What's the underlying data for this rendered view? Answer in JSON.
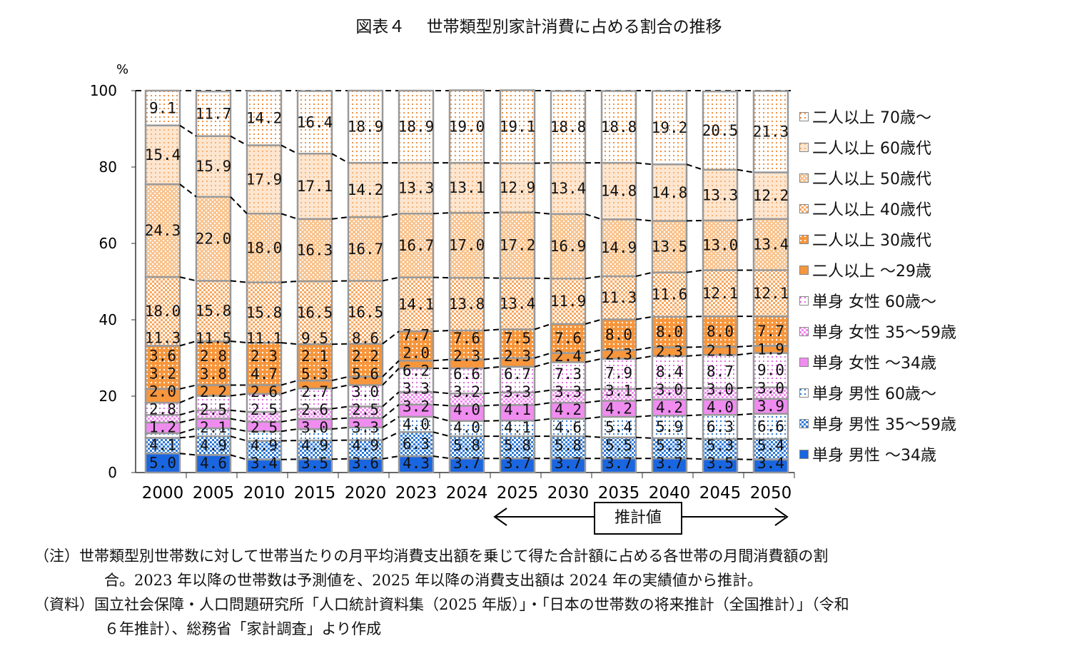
{
  "title": "図表４　 世帯類型別家計消費に占める割合の推移",
  "chart_data": {
    "type": "bar",
    "stacked": true,
    "ylabel": "%",
    "ylim": [
      0,
      100
    ],
    "yticks": [
      0,
      20,
      40,
      60,
      80,
      100
    ],
    "categories": [
      "2000",
      "2005",
      "2010",
      "2015",
      "2020",
      "2023",
      "2024",
      "2025",
      "2030",
      "2035",
      "2040",
      "2045",
      "2050"
    ],
    "series": [
      {
        "name": "単身 男性 ～34歳",
        "color": "#1a66e0",
        "pattern": "solid",
        "values": [
          5.0,
          4.6,
          3.4,
          3.5,
          3.6,
          4.3,
          3.7,
          3.7,
          3.7,
          3.7,
          3.7,
          3.5,
          3.4
        ]
      },
      {
        "name": "単身 男性 35～59歳",
        "color": "#2f7ad8",
        "pattern": "check",
        "values": [
          4.1,
          4.9,
          4.9,
          4.9,
          4.9,
          6.3,
          5.8,
          5.8,
          5.8,
          5.5,
          5.3,
          5.3,
          5.4
        ]
      },
      {
        "name": "単身 男性 60歳～",
        "color": "#2f7ad8",
        "pattern": "dots",
        "values": [
          1.2,
          2.1,
          2.5,
          3.0,
          3.3,
          4.0,
          4.0,
          4.1,
          4.6,
          5.4,
          5.9,
          6.3,
          6.6
        ]
      },
      {
        "name": "単身 女性 ～34歳",
        "color": "#f08cf0",
        "pattern": "solid",
        "values": [
          2.8,
          2.5,
          2.5,
          2.6,
          2.5,
          3.2,
          4.0,
          4.1,
          4.2,
          4.2,
          4.2,
          4.0,
          3.9
        ]
      },
      {
        "name": "単身 女性 35～59歳",
        "color": "#f08cf0",
        "pattern": "check",
        "values": [
          2.0,
          2.2,
          2.6,
          2.7,
          3.0,
          3.3,
          3.2,
          3.3,
          3.3,
          3.1,
          3.0,
          3.0,
          3.0
        ]
      },
      {
        "name": "単身 女性 60歳～",
        "color": "#e070e0",
        "pattern": "dots",
        "values": [
          3.2,
          3.8,
          4.7,
          5.3,
          5.6,
          6.2,
          6.6,
          6.7,
          7.3,
          7.9,
          8.4,
          8.7,
          9.0
        ]
      },
      {
        "name": "二人以上 ～29歳",
        "color": "#f7963c",
        "pattern": "solid",
        "values": [
          3.6,
          2.8,
          2.3,
          2.1,
          2.2,
          2.0,
          2.3,
          2.3,
          2.4,
          2.3,
          2.3,
          2.1,
          1.9
        ]
      },
      {
        "name": "二人以上 30歳代",
        "color": "#f7963c",
        "pattern": "whitedots",
        "values": [
          11.3,
          11.5,
          11.1,
          9.5,
          8.6,
          7.7,
          7.6,
          7.5,
          7.6,
          8.0,
          8.0,
          8.0,
          7.7
        ]
      },
      {
        "name": "二人以上 40歳代",
        "color": "#f7a860",
        "pattern": "check",
        "values": [
          18.0,
          15.8,
          15.8,
          16.5,
          16.5,
          14.1,
          13.8,
          13.4,
          11.9,
          11.3,
          11.6,
          12.1,
          12.1
        ]
      },
      {
        "name": "二人以上 50歳代",
        "color": "#f9c48f",
        "pattern": "densedots",
        "values": [
          24.3,
          22.0,
          18.0,
          16.3,
          16.7,
          16.7,
          17.0,
          17.2,
          16.9,
          14.9,
          13.5,
          13.0,
          13.4
        ]
      },
      {
        "name": "二人以上 60歳代",
        "color": "#f7b070",
        "pattern": "sparsedots",
        "values": [
          15.4,
          15.9,
          17.9,
          17.1,
          14.2,
          13.3,
          13.1,
          12.9,
          13.4,
          14.8,
          14.8,
          13.3,
          12.2
        ]
      },
      {
        "name": "二人以上 70歳～",
        "color": "#f09040",
        "pattern": "dots",
        "values": [
          9.1,
          11.7,
          14.2,
          16.4,
          18.9,
          18.9,
          19.0,
          19.1,
          18.8,
          18.8,
          19.2,
          20.5,
          21.3
        ]
      }
    ],
    "legend": "right",
    "annotation": "推計値"
  },
  "notes": [
    "（注）世帯類型別世帯数に対して世帯当たりの月平均消費支出額を乗じて得た合計額に占める各世帯の月間消費額の割",
    "合。2023 年以降の世帯数は予測値を、2025 年以降の消費支出額は 2024 年の実績値から推計。",
    "（資料）国立社会保障・人口問題研究所「人口統計資料集（2025 年版）」・「日本の世帯数の将来推計（全国推計）」（令和",
    "６年推計）、総務省「家計調査」より作成"
  ]
}
